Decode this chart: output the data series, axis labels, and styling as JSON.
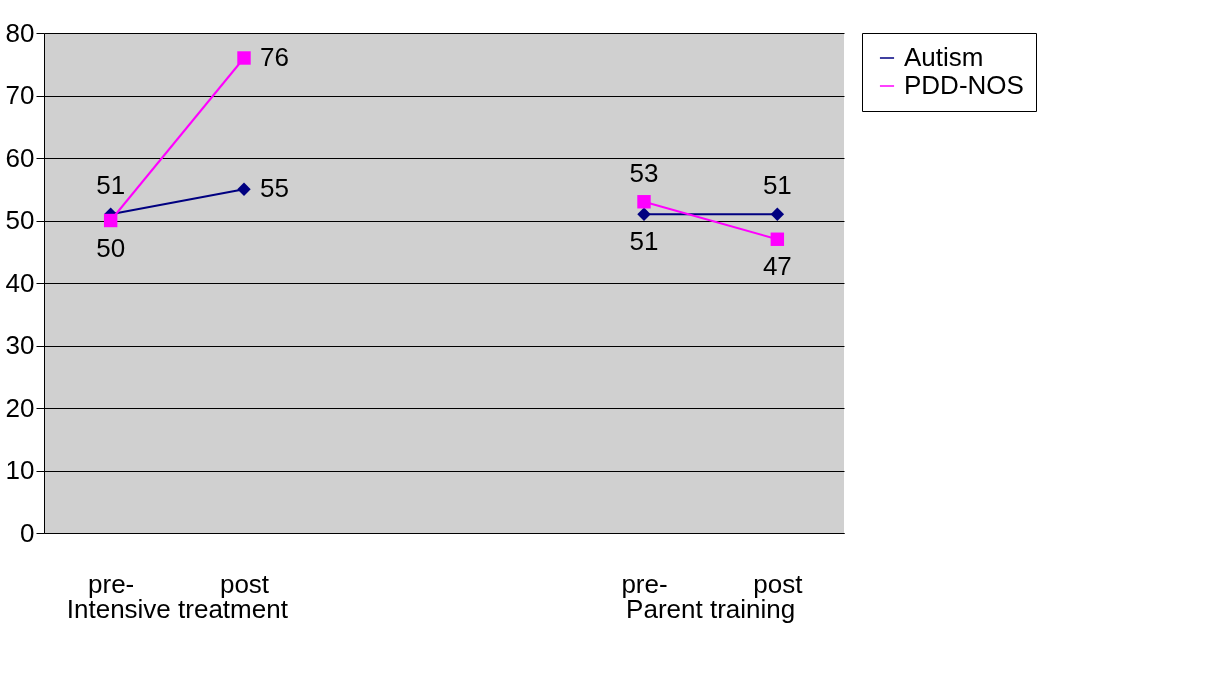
{
  "chart_data": {
    "type": "line",
    "categories": [
      "pre-",
      "post",
      null,
      null,
      "pre-",
      "post"
    ],
    "series": [
      {
        "name": "Autism",
        "color": "#000080",
        "marker": "diamond",
        "values": [
          51,
          55,
          null,
          null,
          51,
          51
        ]
      },
      {
        "name": "PDD-NOS",
        "color": "#ff00ff",
        "marker": "square",
        "values": [
          50,
          76,
          null,
          null,
          53,
          47
        ]
      }
    ],
    "annotations": [
      "Intensive treatment",
      "Parent training"
    ],
    "ylim": [
      0,
      80
    ],
    "yticks": [
      0,
      10,
      20,
      30,
      40,
      50,
      60,
      70,
      80
    ],
    "grid": "y",
    "legend": "right",
    "data_labels": true
  }
}
